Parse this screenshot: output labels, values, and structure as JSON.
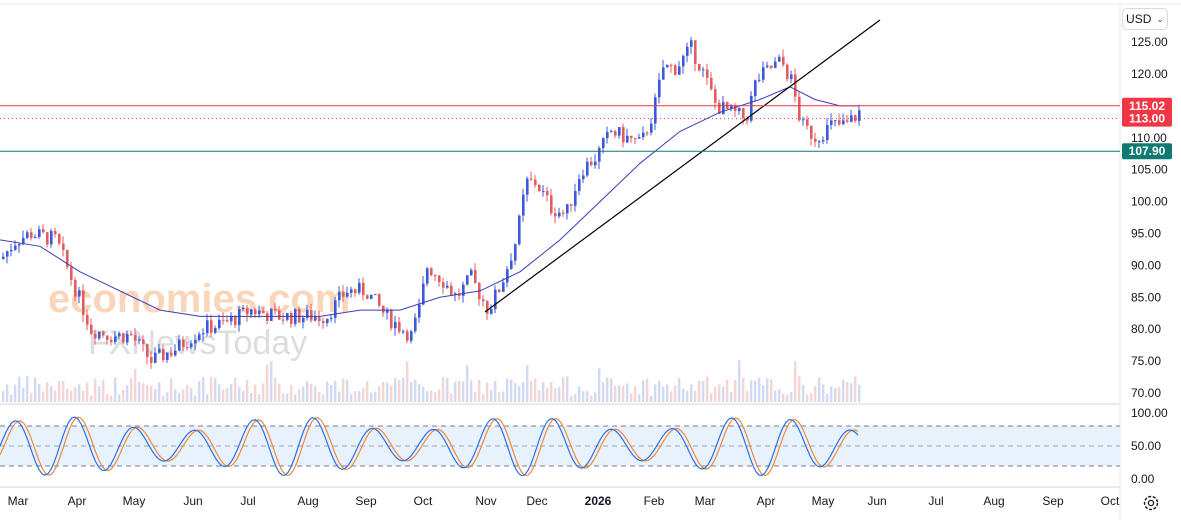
{
  "currency_selector": {
    "label": "USD",
    "chevron_icon": "chevron-down-icon"
  },
  "settings_icon": "gear-icon",
  "watermark": {
    "line1": "economies.com",
    "line2": "FXNewsToday"
  },
  "colors": {
    "up": "#3c5ad8",
    "down": "#e05d61",
    "ma": "#3a3fb8",
    "trendline": "#000000",
    "resistance": "#f23645",
    "support": "#0e7a72",
    "stoch_k": "#2f6fe8",
    "stoch_d": "#f0883e",
    "stoch_band": "#e8f2fc",
    "volume_up": "#d2daf3",
    "volume_down": "#f5d4d5"
  },
  "chart_data": [
    {
      "type": "candlestick",
      "title": "",
      "ylim": [
        68,
        127
      ],
      "y_ticks": [
        "70.00",
        "75.00",
        "80.00",
        "85.00",
        "90.00",
        "95.00",
        "100.00",
        "105.00",
        "110.00",
        "115.00",
        "120.00",
        "125.00"
      ],
      "x_ticks": [
        "Mar",
        "Apr",
        "May",
        "Jun",
        "Jul",
        "Aug",
        "Sep",
        "Oct",
        "Nov",
        "Dec",
        "2026",
        "Feb",
        "Mar",
        "Apr",
        "May",
        "Jun",
        "Jul",
        "Aug",
        "Sep",
        "Oct"
      ],
      "price_levels": [
        {
          "value": 115.02,
          "label": "115.02",
          "style": "solid",
          "color": "#f23645"
        },
        {
          "value": 113.0,
          "label": "113.00",
          "style": "dotted",
          "color": "#f23645"
        },
        {
          "value": 107.9,
          "label": "107.90",
          "style": "solid",
          "color": "#0e7a72"
        }
      ],
      "moving_average": "present",
      "trendline": "present",
      "volume": "present"
    },
    {
      "type": "line",
      "indicator": "stochastic",
      "ylim": [
        0,
        100
      ],
      "y_ticks": [
        "0.00",
        "50.00",
        "100.00"
      ],
      "levels": [
        20,
        50,
        80
      ]
    }
  ]
}
